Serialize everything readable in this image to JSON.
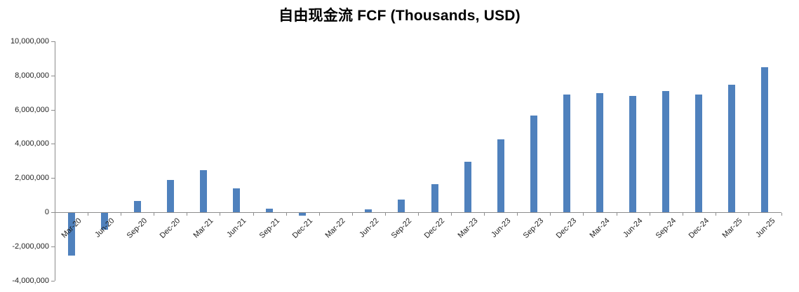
{
  "chart_title": "自由现金流 FCF (Thousands, USD)",
  "colors": {
    "bar": "#4F81BD",
    "axis": "#8C8C8C",
    "tick_label": "#1F1F1F",
    "title": "#000000",
    "background": "#FFFFFF"
  },
  "chart_data": {
    "type": "bar",
    "title": "自由现金流 FCF (Thousands, USD)",
    "value_unit": "Thousands, USD",
    "categories": [
      "Mar-20",
      "Jun-20",
      "Sep-20",
      "Dec-20",
      "Mar-21",
      "Jun-21",
      "Sep-21",
      "Dec-21",
      "Mar-22",
      "Jun-22",
      "Sep-22",
      "Dec-22",
      "Mar-23",
      "Jun-23",
      "Sep-23",
      "Dec-23",
      "Mar-24",
      "Jun-24",
      "Sep-24",
      "Dec-24",
      "Mar-25",
      "Jun-25"
    ],
    "values": [
      -2500000,
      -1000000,
      650000,
      1900000,
      2450000,
      1400000,
      200000,
      -150000,
      0,
      180000,
      750000,
      1650000,
      2950000,
      4250000,
      5650000,
      6900000,
      6950000,
      6800000,
      7100000,
      6900000,
      7450000,
      8480000
    ],
    "xlabel": "",
    "ylabel": "",
    "ylim": [
      -4000000,
      10000000
    ],
    "ytick_step": 2000000,
    "ytick_labels": [
      "10,000,000",
      "8,000,000",
      "6,000,000",
      "4,000,000",
      "2,000,000",
      "0",
      "-2,000,000",
      "-4,000,000"
    ],
    "grid": false,
    "legend": false,
    "x_label_rotation_deg": -45,
    "bar_color": "#4F81BD"
  }
}
